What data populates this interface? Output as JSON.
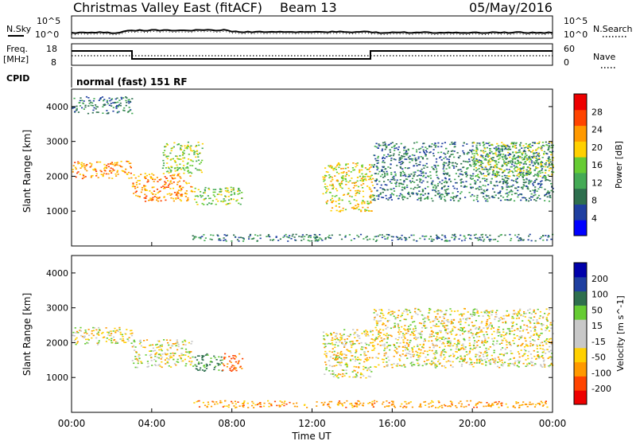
{
  "header": {
    "title": "Christmas Valley East (fitACF)",
    "beam": "Beam 13",
    "date": "05/May/2016"
  },
  "top_panels": {
    "nsky_label": "N.Sky",
    "nsearch_label": "N.Search",
    "noise_ticks_left": [
      "10^5",
      "10^0"
    ],
    "noise_ticks_right": [
      "10^5",
      "10^0"
    ],
    "freq_label_1": "Freq.",
    "freq_label_2": "[MHz]",
    "freq_ticks": [
      "18",
      "8"
    ],
    "nave_label": "Nave",
    "nave_ticks": [
      "60",
      "0"
    ],
    "cpid_label": "CPID",
    "cpid_text": "normal (fast) 151 RF"
  },
  "colors": {
    "power_scale": [
      "#0000ff",
      "#1f3fa0",
      "#2e6f4e",
      "#44aa55",
      "#66cc33",
      "#ffd000",
      "#ff9900",
      "#ff4400",
      "#ee0000"
    ],
    "velocity_scale": [
      "#ee0000",
      "#ff4400",
      "#ff9900",
      "#ffd000",
      "#c8c8c8",
      "#c8c8c8",
      "#66cc33",
      "#2e6f4e",
      "#1f3fa0",
      "#0000aa"
    ]
  },
  "chart_data": [
    {
      "type": "heatmap",
      "panel": "power",
      "ylabel": "Slant Range [km]",
      "y_ticks": [
        "1000",
        "2000",
        "3000",
        "4000"
      ],
      "ylim": [
        0,
        4500
      ],
      "colorbar_label": "Power [dB]",
      "colorbar_ticks": [
        "28",
        "24",
        "20",
        "16",
        "12",
        "8",
        "4"
      ],
      "regions": [
        {
          "t0": 0.0,
          "t1": 3.0,
          "r0": 1950,
          "r1": 2450,
          "value_db": 24
        },
        {
          "t0": 0.0,
          "t1": 3.0,
          "r0": 3800,
          "r1": 4300,
          "value_db": 8
        },
        {
          "t0": 3.0,
          "t1": 6.0,
          "r0": 1300,
          "r1": 2100,
          "value_db": 24
        },
        {
          "t0": 4.5,
          "t1": 6.5,
          "r0": 2100,
          "r1": 3000,
          "value_db": 16
        },
        {
          "t0": 6.0,
          "t1": 8.5,
          "r0": 1200,
          "r1": 1700,
          "value_db": 16
        },
        {
          "t0": 12.5,
          "t1": 15.0,
          "r0": 1000,
          "r1": 2400,
          "value_db": 20
        },
        {
          "t0": 15.0,
          "t1": 24.0,
          "r0": 1300,
          "r1": 3000,
          "value_db": 8
        },
        {
          "t0": 20.0,
          "t1": 24.0,
          "r0": 2000,
          "r1": 3000,
          "value_db": 16
        },
        {
          "t0": 6.0,
          "t1": 24.0,
          "r0": 150,
          "r1": 350,
          "value_db": 8
        }
      ]
    },
    {
      "type": "heatmap",
      "panel": "velocity",
      "ylabel": "Slant Range [km]",
      "y_ticks": [
        "1000",
        "2000",
        "3000",
        "4000"
      ],
      "ylim": [
        0,
        4500
      ],
      "xlabel": "Time UT",
      "x_ticks": [
        "00:00",
        "04:00",
        "08:00",
        "12:00",
        "16:00",
        "20:00",
        "00:00"
      ],
      "xlim": [
        0,
        24
      ],
      "colorbar_label": "Velocity [m s^-1]",
      "colorbar_ticks": [
        "200",
        "100",
        "50",
        "15",
        "-15",
        "-50",
        "-100",
        "-200"
      ],
      "regions": [
        {
          "t0": 0.0,
          "t1": 3.0,
          "r0": 1950,
          "r1": 2450,
          "value_ms": 0
        },
        {
          "t0": 3.0,
          "t1": 6.0,
          "r0": 1300,
          "r1": 2100,
          "value_ms": 0
        },
        {
          "t0": 6.0,
          "t1": 7.5,
          "r0": 1200,
          "r1": 1700,
          "value_ms": 60
        },
        {
          "t0": 7.5,
          "t1": 8.5,
          "r0": 1200,
          "r1": 1700,
          "value_ms": -60
        },
        {
          "t0": 12.5,
          "t1": 15.0,
          "r0": 1000,
          "r1": 2400,
          "value_ms": 0
        },
        {
          "t0": 15.0,
          "t1": 24.0,
          "r0": 1300,
          "r1": 3000,
          "value_ms": 0
        },
        {
          "t0": 6.0,
          "t1": 24.0,
          "r0": 150,
          "r1": 350,
          "value_ms": -30
        }
      ]
    }
  ]
}
